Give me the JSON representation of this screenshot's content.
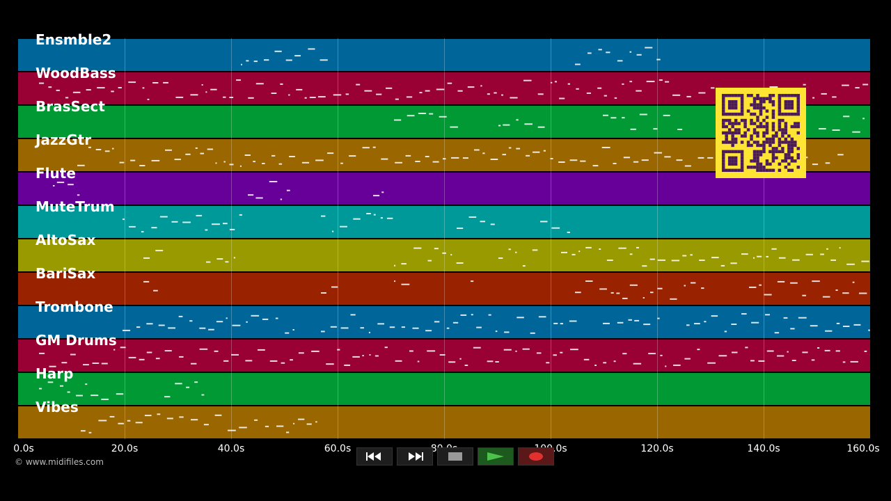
{
  "tracks": [
    {
      "name": "Ensmble2",
      "color": "#006699"
    },
    {
      "name": "WoodBass",
      "color": "#990033"
    },
    {
      "name": "BrasSect",
      "color": "#009933"
    },
    {
      "name": "JazzGtr",
      "color": "#996600"
    },
    {
      "name": "Flute",
      "color": "#660099"
    },
    {
      "name": "MuteTrum",
      "color": "#009999"
    },
    {
      "name": "AltoSax",
      "color": "#999900"
    },
    {
      "name": "BariSax",
      "color": "#992200"
    },
    {
      "name": "Trombone",
      "color": "#006699"
    },
    {
      "name": "GM Drums",
      "color": "#990033"
    },
    {
      "name": "Harp",
      "color": "#009933"
    },
    {
      "name": "Vibes",
      "color": "#996600"
    }
  ],
  "timeline": {
    "ticks": [
      "0.0s",
      "20.0s",
      "40.0s",
      "60.0s",
      "80.0s",
      "100.0s",
      "120.0s",
      "140.0s",
      "160.0s"
    ],
    "max_seconds": 160
  },
  "footer": {
    "copyright": "© www.midifiles.com"
  },
  "transport": {
    "buttons": [
      {
        "name": "rewind",
        "icon": "rewind-icon"
      },
      {
        "name": "fast-forward",
        "icon": "fast-forward-icon"
      },
      {
        "name": "stop",
        "icon": "stop-icon"
      },
      {
        "name": "play",
        "icon": "play-icon"
      },
      {
        "name": "record",
        "icon": "record-icon"
      }
    ]
  },
  "colors": {
    "background": "#000000",
    "note": "#ffffff",
    "qr_background": "#ffe533",
    "qr_modules": "#4a1a5c",
    "play_icon": "#4cc24c",
    "record_icon": "#e03030"
  }
}
